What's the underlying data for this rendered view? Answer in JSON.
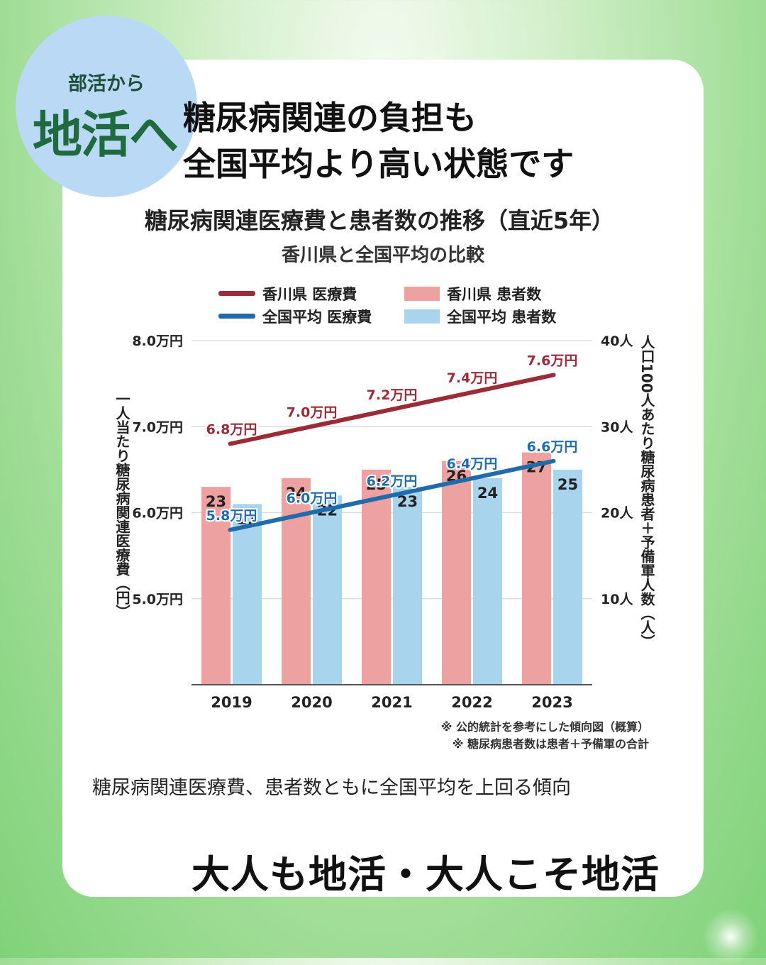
{
  "badge": {
    "small": "部活から",
    "big": "地活へ"
  },
  "headline": {
    "line1": "糖尿病関連の負担も",
    "line2": "全国平均より高い状態です"
  },
  "caption": "糖尿病関連医療費、患者数ともに全国平均を上回る傾向",
  "slogan": "大人も地活・大人こそ地活",
  "colors": {
    "kagawa_cost": "#9c2a37",
    "national_cost": "#1f6bab",
    "kagawa_patients": "#eda1a1",
    "national_patients": "#a8d4ee",
    "badge": "#b9d9f5",
    "badge_text": "#1f6a3f"
  },
  "chart_data": {
    "type": "bar+line",
    "title": "糖尿病関連医療費と患者数の推移（直近5年）",
    "subtitle": "香川県と全国平均の比較",
    "categories": [
      "2019",
      "2020",
      "2021",
      "2022",
      "2023"
    ],
    "y_left": {
      "label": "一人当たり糖尿病関連医療費（円）",
      "ticks": [
        "5.0万円",
        "6.0万円",
        "7.0万円",
        "8.0万円"
      ],
      "tick_values": [
        5.0,
        6.0,
        7.0,
        8.0
      ],
      "range": [
        4.0,
        8.0
      ]
    },
    "y_right": {
      "label": "人口100人あたり糖尿病患者＋予備軍人数（人）",
      "ticks": [
        "10人",
        "20人",
        "30人",
        "40人"
      ],
      "tick_values": [
        10,
        20,
        30,
        40
      ],
      "range": [
        0,
        40
      ]
    },
    "legend": {
      "kagawa_cost": "香川県 医療費",
      "national_cost": "全国平均 医療費",
      "kagawa_patients": "香川県 患者数",
      "national_patients": "全国平均 患者数"
    },
    "lines": [
      {
        "key": "kagawa_cost",
        "values": [
          6.8,
          7.0,
          7.2,
          7.4,
          7.6
        ],
        "labels": [
          "6.8万円",
          "7.0万円",
          "7.2万円",
          "7.4万円",
          "7.6万円"
        ]
      },
      {
        "key": "national_cost",
        "values": [
          5.8,
          6.0,
          6.2,
          6.4,
          6.6
        ],
        "labels": [
          "5.8万円",
          "6.0万円",
          "6.2万円",
          "6.4万円",
          "6.6万円"
        ]
      }
    ],
    "bars": [
      {
        "key": "kagawa_patients",
        "values": [
          23,
          24,
          25,
          26,
          27
        ]
      },
      {
        "key": "national_patients",
        "values": [
          21,
          22,
          23,
          24,
          25
        ]
      }
    ],
    "grid": true,
    "notes": [
      "※ 公的統計を参考にした傾向図（概算）",
      "※ 糖尿病患者数は患者＋予備軍の合計"
    ]
  }
}
